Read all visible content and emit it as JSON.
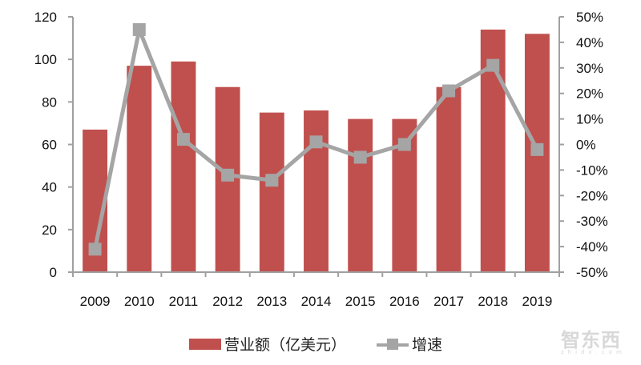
{
  "chart_data": {
    "type": "bar+line",
    "title": "",
    "categories": [
      "2009",
      "2010",
      "2011",
      "2012",
      "2013",
      "2014",
      "2015",
      "2016",
      "2017",
      "2018",
      "2019"
    ],
    "series": [
      {
        "name": "营业额（亿美元）",
        "type": "bar",
        "axis": "left",
        "color": "#c0504d",
        "values": [
          67,
          97,
          99,
          87,
          75,
          76,
          72,
          72,
          87,
          114,
          112
        ]
      },
      {
        "name": "增速",
        "type": "line",
        "axis": "right",
        "color": "#a5a5a5",
        "marker": "square",
        "values": [
          -41,
          45,
          2,
          -12,
          -14,
          1,
          -5,
          0,
          21,
          31,
          -2
        ]
      }
    ],
    "left_axis": {
      "min": 0,
      "max": 120,
      "step": 20,
      "ticks": [
        "0",
        "20",
        "40",
        "60",
        "80",
        "100",
        "120"
      ]
    },
    "right_axis": {
      "min": -50,
      "max": 50,
      "step": 10,
      "unit": "%",
      "ticks": [
        "-50%",
        "-40%",
        "-30%",
        "-20%",
        "-10%",
        "0%",
        "10%",
        "20%",
        "30%",
        "40%",
        "50%"
      ]
    },
    "xlabel": "",
    "ylabel": "",
    "grid": false,
    "legend_position": "bottom"
  },
  "legend": {
    "bar_label": "营业额（亿美元）",
    "line_label": "增速"
  },
  "watermark": {
    "text": "智东西",
    "sub": "zhidx.com"
  }
}
